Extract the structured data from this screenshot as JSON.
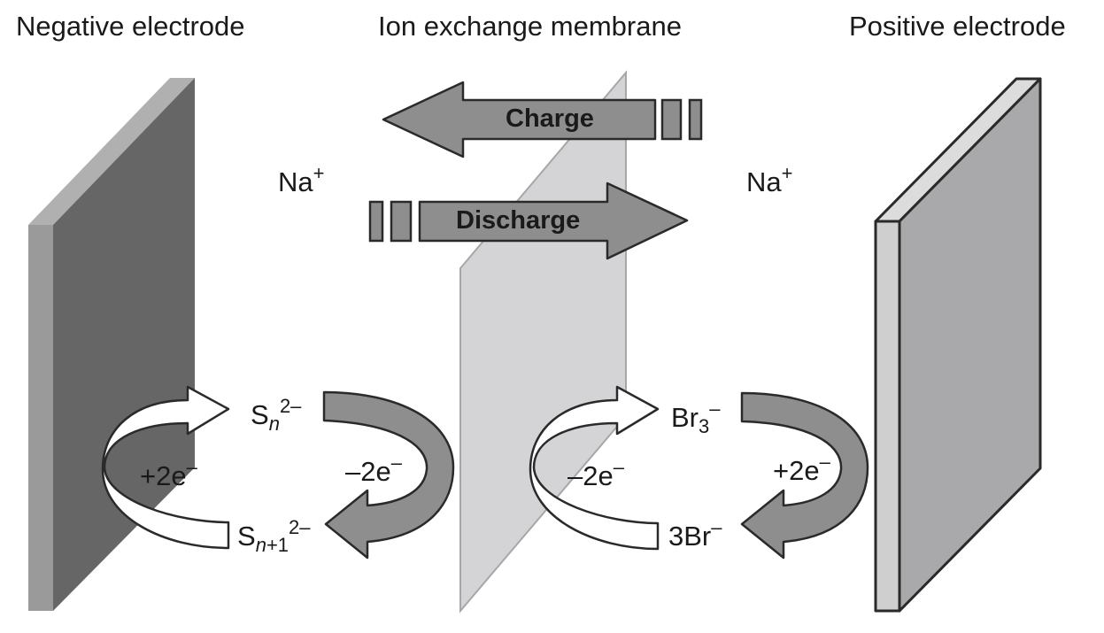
{
  "headers": {
    "negative_electrode": "Negative electrode",
    "membrane": "Ion exchange membrane",
    "positive_electrode": "Positive electrode"
  },
  "arrows": {
    "charge": "Charge",
    "discharge": "Discharge"
  },
  "ions": {
    "na_left": "Na",
    "na_right": "Na",
    "na_charge": "+",
    "sn_base": "S",
    "sn_sub": "n",
    "sn_charge": "2–",
    "sn1_base": "S",
    "sn1_sub_n": "n",
    "sn1_sub_rest": "+1",
    "sn1_charge": "2–",
    "br3_base": "Br",
    "br3_sub": "3",
    "br3_charge": "–",
    "br": "3Br",
    "br_charge": "–"
  },
  "electrons": {
    "neg_plus": "+2e",
    "neg_minus": "–2e",
    "pos_minus": "–2e",
    "pos_plus": "+2e",
    "sign": "–"
  },
  "colors": {
    "neg_electrode_front": "#9a9a9a",
    "neg_electrode_face": "#666666",
    "membrane": "#d4d4d6",
    "pos_electrode_front": "#cfcfcf",
    "pos_electrode_face": "#a9a9ab",
    "arrow_fill": "#8e8e8e",
    "outline": "#2a2a2a"
  }
}
